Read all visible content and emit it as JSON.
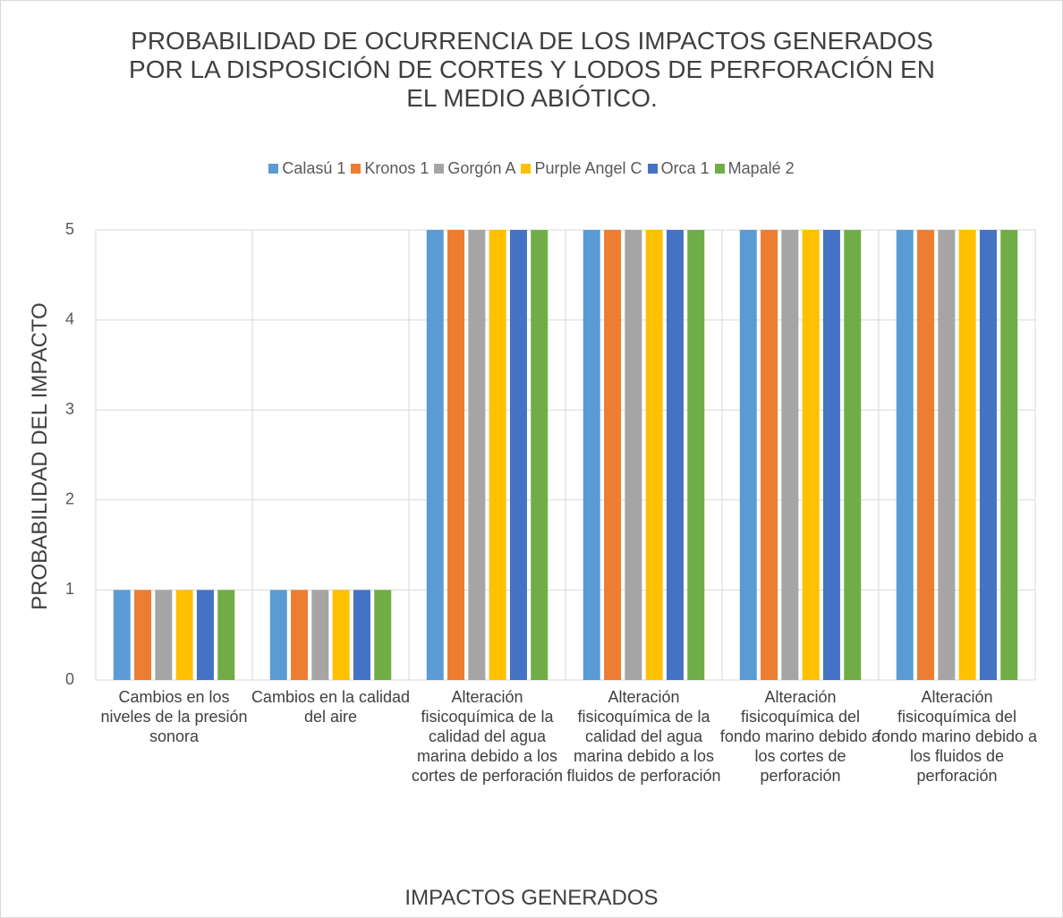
{
  "chart_data": {
    "type": "bar",
    "title": "PROBABILIDAD DE OCURRENCIA DE LOS IMPACTOS GENERADOS POR LA DISPOSICIÓN DE CORTES Y LODOS DE PERFORACIÓN EN EL MEDIO ABIÓTICO.",
    "x_label": "IMPACTOS GENERADOS",
    "y_label": "PROBABILIDAD DEL IMPACTO",
    "categories": [
      "Cambios en los niveles de la presión sonora",
      "Cambios en la calidad del aire",
      "Alteración fisicoquímica de la calidad del agua marina debido a los cortes de perforación",
      "Alteración fisicoquímica de la calidad del agua marina debido a los fluidos de perforación",
      "Alteración fisicoquímica del fondo marino debido a los cortes de perforación",
      "Alteración fisicoquímica del fondo marino debido a los fluidos de perforación"
    ],
    "series": [
      {
        "name": "Calasú 1",
        "color": "#5b9bd5",
        "values": [
          1,
          1,
          5,
          5,
          5,
          5
        ]
      },
      {
        "name": "Kronos 1",
        "color": "#ed7d31",
        "values": [
          1,
          1,
          5,
          5,
          5,
          5
        ]
      },
      {
        "name": "Gorgón A",
        "color": "#a5a5a5",
        "values": [
          1,
          1,
          5,
          5,
          5,
          5
        ]
      },
      {
        "name": "Purple Angel C",
        "color": "#ffc000",
        "values": [
          1,
          1,
          5,
          5,
          5,
          5
        ]
      },
      {
        "name": "Orca 1",
        "color": "#4472c4",
        "values": [
          1,
          1,
          5,
          5,
          5,
          5
        ]
      },
      {
        "name": "Mapalé 2",
        "color": "#70ad47",
        "values": [
          1,
          1,
          5,
          5,
          5,
          5
        ]
      }
    ],
    "ylim": [
      0,
      5
    ],
    "yticks": [
      0,
      1,
      2,
      3,
      4,
      5
    ],
    "grid": true,
    "legend": "top"
  }
}
